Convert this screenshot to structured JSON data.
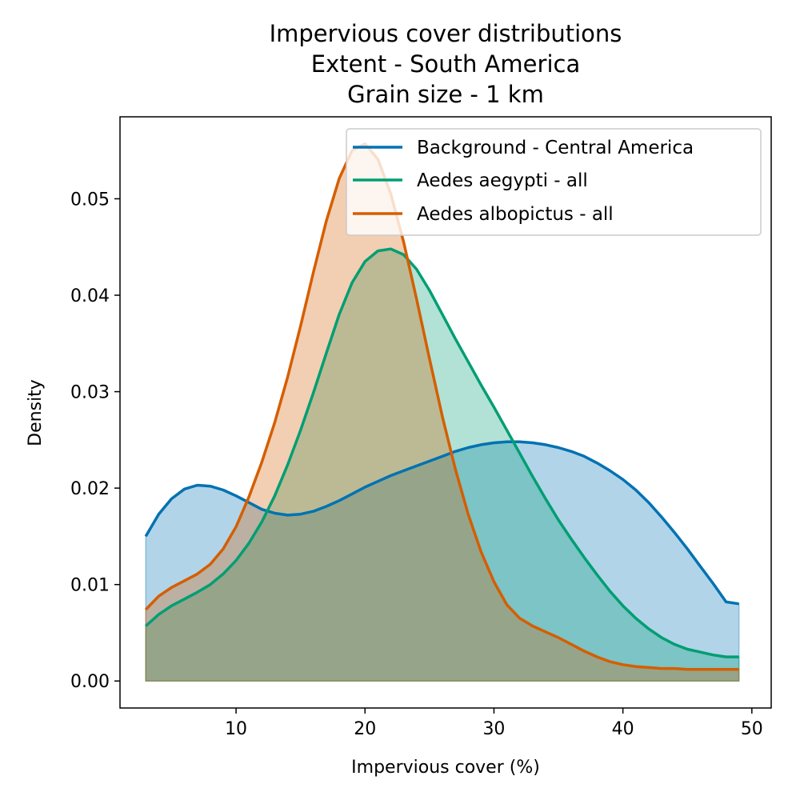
{
  "chart_data": {
    "type": "area",
    "title_lines": [
      "Impervious cover distributions",
      "Extent - South America",
      "Grain size - 1 km"
    ],
    "xlabel": "Impervious cover (%)",
    "ylabel": "Density",
    "xlim": [
      1,
      51.5
    ],
    "ylim": [
      -0.0028,
      0.0585
    ],
    "xticks": [
      10,
      20,
      30,
      40,
      50
    ],
    "xtick_labels": [
      "10",
      "20",
      "30",
      "40",
      "50"
    ],
    "yticks": [
      0,
      0.01,
      0.02,
      0.03,
      0.04,
      0.05
    ],
    "ytick_labels": [
      "0.00",
      "0.01",
      "0.02",
      "0.03",
      "0.04",
      "0.05"
    ],
    "grid": false,
    "legend_position": "top-right",
    "series": [
      {
        "name": "Background - Central America",
        "color": "#0072b2",
        "x": [
          3,
          4,
          5,
          6,
          7,
          8,
          9,
          10,
          11,
          12,
          13,
          14,
          15,
          16,
          17,
          18,
          19,
          20,
          21,
          22,
          23,
          24,
          25,
          26,
          27,
          28,
          29,
          30,
          31,
          32,
          33,
          34,
          35,
          36,
          37,
          38,
          39,
          40,
          41,
          42,
          43,
          44,
          45,
          46,
          47,
          48,
          49
        ],
        "y": [
          0.015,
          0.0173,
          0.0189,
          0.0199,
          0.0203,
          0.0202,
          0.0198,
          0.0192,
          0.0185,
          0.0178,
          0.0174,
          0.0172,
          0.0173,
          0.0176,
          0.0181,
          0.0187,
          0.0194,
          0.0201,
          0.0207,
          0.0213,
          0.0218,
          0.0223,
          0.0228,
          0.0233,
          0.0238,
          0.0242,
          0.0245,
          0.0247,
          0.0248,
          0.0248,
          0.0247,
          0.0245,
          0.0242,
          0.0238,
          0.0233,
          0.0226,
          0.0218,
          0.0209,
          0.0198,
          0.0185,
          0.017,
          0.0154,
          0.0137,
          0.0119,
          0.0101,
          0.0082,
          0.008
        ]
      },
      {
        "name": "Aedes aegypti - all",
        "color": "#009e73",
        "x": [
          3,
          4,
          5,
          6,
          7,
          8,
          9,
          10,
          11,
          12,
          13,
          14,
          15,
          16,
          17,
          18,
          19,
          20,
          21,
          22,
          23,
          24,
          25,
          26,
          27,
          28,
          29,
          30,
          31,
          32,
          33,
          34,
          35,
          36,
          37,
          38,
          39,
          40,
          41,
          42,
          43,
          44,
          45,
          46,
          47,
          48,
          49
        ],
        "y": [
          0.0057,
          0.0069,
          0.0078,
          0.0085,
          0.0092,
          0.01,
          0.0111,
          0.0125,
          0.0143,
          0.0165,
          0.0192,
          0.0224,
          0.026,
          0.0299,
          0.034,
          0.038,
          0.0413,
          0.0435,
          0.0446,
          0.0448,
          0.0442,
          0.0427,
          0.0405,
          0.038,
          0.0355,
          0.0331,
          0.0307,
          0.0284,
          0.026,
          0.0236,
          0.0212,
          0.0189,
          0.0167,
          0.0147,
          0.0128,
          0.011,
          0.0093,
          0.0078,
          0.0065,
          0.0054,
          0.0045,
          0.0038,
          0.0033,
          0.003,
          0.0027,
          0.0025,
          0.0025
        ]
      },
      {
        "name": "Aedes albopictus - all",
        "color": "#d55e00",
        "x": [
          3,
          4,
          5,
          6,
          7,
          8,
          9,
          10,
          11,
          12,
          13,
          14,
          15,
          16,
          17,
          18,
          19,
          20,
          21,
          22,
          23,
          24,
          25,
          26,
          27,
          28,
          29,
          30,
          31,
          32,
          33,
          34,
          35,
          36,
          37,
          38,
          39,
          40,
          41,
          42,
          43,
          44,
          45,
          46,
          47,
          48,
          49
        ],
        "y": [
          0.0074,
          0.0088,
          0.0097,
          0.0104,
          0.0111,
          0.0121,
          0.0137,
          0.016,
          0.0191,
          0.0227,
          0.0268,
          0.0315,
          0.0368,
          0.0424,
          0.0477,
          0.0521,
          0.055,
          0.0557,
          0.0541,
          0.0505,
          0.0455,
          0.0396,
          0.0334,
          0.0274,
          0.022,
          0.0173,
          0.0134,
          0.0103,
          0.0079,
          0.0065,
          0.0057,
          0.0051,
          0.0045,
          0.0038,
          0.0031,
          0.0025,
          0.002,
          0.0017,
          0.0015,
          0.0014,
          0.0013,
          0.0013,
          0.0012,
          0.0012,
          0.0012,
          0.0012,
          0.0012
        ]
      }
    ]
  }
}
